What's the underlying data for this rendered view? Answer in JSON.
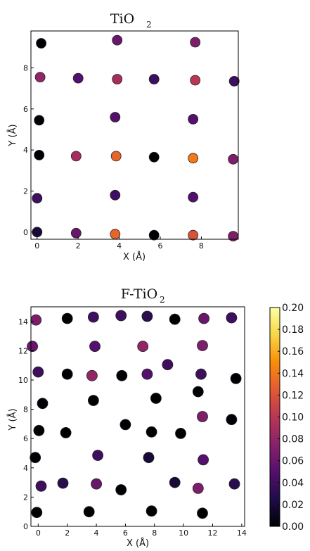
{
  "colorbar": {
    "min": 0.0,
    "max": 0.2,
    "ticks": [
      "0.20",
      "0.18",
      "0.16",
      "0.14",
      "0.12",
      "0.10",
      "0.08",
      "0.06",
      "0.04",
      "0.02",
      "0.00"
    ],
    "colormap": "inferno",
    "stops": [
      "#000004",
      "#1f0c48",
      "#550f6d",
      "#88226a",
      "#ba3655",
      "#e35933",
      "#f98e09",
      "#f6d746",
      "#fcffa4"
    ]
  },
  "chart_data": [
    {
      "type": "scatter",
      "title": "TiO",
      "title_sub": "2",
      "xlabel": "X (Å)",
      "ylabel": "Y (Å)",
      "xlim": [
        -0.3,
        9.8
      ],
      "ylim": [
        -0.35,
        9.8
      ],
      "xticks": [
        "0",
        "2",
        "4",
        "6",
        "8"
      ],
      "yticks": [
        "0",
        "2",
        "4",
        "6",
        "8"
      ],
      "grid": false,
      "points": [
        {
          "x": 0.2,
          "y": 9.2,
          "v": 0.0
        },
        {
          "x": 3.9,
          "y": 9.35,
          "v": 0.06
        },
        {
          "x": 7.7,
          "y": 9.25,
          "v": 0.07
        },
        {
          "x": 0.15,
          "y": 7.55,
          "v": 0.08
        },
        {
          "x": 2.0,
          "y": 7.5,
          "v": 0.05
        },
        {
          "x": 3.9,
          "y": 7.45,
          "v": 0.09
        },
        {
          "x": 5.7,
          "y": 7.45,
          "v": 0.04
        },
        {
          "x": 7.7,
          "y": 7.4,
          "v": 0.1
        },
        {
          "x": 9.6,
          "y": 7.35,
          "v": 0.04
        },
        {
          "x": 0.1,
          "y": 5.45,
          "v": 0.0
        },
        {
          "x": 3.8,
          "y": 5.6,
          "v": 0.05
        },
        {
          "x": 7.6,
          "y": 5.5,
          "v": 0.05
        },
        {
          "x": 0.1,
          "y": 3.75,
          "v": 0.0
        },
        {
          "x": 1.9,
          "y": 3.7,
          "v": 0.09
        },
        {
          "x": 3.85,
          "y": 3.7,
          "v": 0.13
        },
        {
          "x": 5.7,
          "y": 3.65,
          "v": 0.0
        },
        {
          "x": 7.6,
          "y": 3.6,
          "v": 0.14
        },
        {
          "x": 9.55,
          "y": 3.55,
          "v": 0.07
        },
        {
          "x": 0.0,
          "y": 1.65,
          "v": 0.04
        },
        {
          "x": 3.8,
          "y": 1.8,
          "v": 0.04
        },
        {
          "x": 7.6,
          "y": 1.7,
          "v": 0.05
        },
        {
          "x": 0.0,
          "y": 0.0,
          "v": 0.02
        },
        {
          "x": 1.9,
          "y": -0.05,
          "v": 0.06
        },
        {
          "x": 3.8,
          "y": -0.1,
          "v": 0.13
        },
        {
          "x": 5.7,
          "y": -0.15,
          "v": 0.0
        },
        {
          "x": 7.6,
          "y": -0.15,
          "v": 0.12
        },
        {
          "x": 9.55,
          "y": -0.2,
          "v": 0.07
        }
      ]
    },
    {
      "type": "scatter",
      "title": "F-TiO",
      "title_sub": "2",
      "xlabel": "X (Å)",
      "ylabel": "Y (Å)",
      "xlim": [
        -0.5,
        14.2
      ],
      "ylim": [
        0,
        15
      ],
      "xticks": [
        "0",
        "2",
        "4",
        "6",
        "8",
        "10",
        "12",
        "14"
      ],
      "yticks": [
        "0",
        "2",
        "4",
        "6",
        "8",
        "10",
        "12",
        "14"
      ],
      "grid": false,
      "points": [
        {
          "x": -0.15,
          "y": 14.1,
          "v": 0.07
        },
        {
          "x": 2.0,
          "y": 14.2,
          "v": 0.0
        },
        {
          "x": 3.8,
          "y": 14.3,
          "v": 0.04
        },
        {
          "x": 5.7,
          "y": 14.4,
          "v": 0.04
        },
        {
          "x": 7.5,
          "y": 14.35,
          "v": 0.03
        },
        {
          "x": 9.4,
          "y": 14.15,
          "v": 0.0
        },
        {
          "x": 11.4,
          "y": 14.2,
          "v": 0.06
        },
        {
          "x": 13.3,
          "y": 14.25,
          "v": 0.04
        },
        {
          "x": -0.4,
          "y": 12.3,
          "v": 0.06
        },
        {
          "x": 3.9,
          "y": 12.3,
          "v": 0.05
        },
        {
          "x": 7.2,
          "y": 12.3,
          "v": 0.08
        },
        {
          "x": 11.3,
          "y": 12.35,
          "v": 0.07
        },
        {
          "x": 0.0,
          "y": 10.55,
          "v": 0.04
        },
        {
          "x": 2.0,
          "y": 10.4,
          "v": 0.0
        },
        {
          "x": 3.7,
          "y": 10.3,
          "v": 0.08
        },
        {
          "x": 5.75,
          "y": 10.3,
          "v": 0.0
        },
        {
          "x": 7.5,
          "y": 10.4,
          "v": 0.05
        },
        {
          "x": 8.9,
          "y": 11.05,
          "v": 0.04
        },
        {
          "x": 11.2,
          "y": 10.4,
          "v": 0.04
        },
        {
          "x": 13.6,
          "y": 10.1,
          "v": 0.0
        },
        {
          "x": 0.3,
          "y": 8.4,
          "v": 0.0
        },
        {
          "x": 3.8,
          "y": 8.6,
          "v": 0.0
        },
        {
          "x": 8.1,
          "y": 8.75,
          "v": 0.0
        },
        {
          "x": 11.0,
          "y": 9.2,
          "v": 0.0
        },
        {
          "x": 0.05,
          "y": 6.55,
          "v": 0.0
        },
        {
          "x": 1.9,
          "y": 6.4,
          "v": 0.0
        },
        {
          "x": 6.0,
          "y": 6.95,
          "v": 0.0
        },
        {
          "x": 7.8,
          "y": 6.45,
          "v": 0.0
        },
        {
          "x": 9.8,
          "y": 6.35,
          "v": 0.0
        },
        {
          "x": 11.3,
          "y": 7.5,
          "v": 0.07
        },
        {
          "x": 13.3,
          "y": 7.3,
          "v": 0.0
        },
        {
          "x": -0.2,
          "y": 4.7,
          "v": 0.0
        },
        {
          "x": 4.1,
          "y": 4.85,
          "v": 0.04
        },
        {
          "x": 7.6,
          "y": 4.7,
          "v": 0.02
        },
        {
          "x": 11.35,
          "y": 4.55,
          "v": 0.05
        },
        {
          "x": 0.2,
          "y": 2.75,
          "v": 0.04
        },
        {
          "x": 1.7,
          "y": 2.95,
          "v": 0.03
        },
        {
          "x": 4.0,
          "y": 2.9,
          "v": 0.06
        },
        {
          "x": 5.7,
          "y": 2.5,
          "v": 0.0
        },
        {
          "x": 9.4,
          "y": 3.0,
          "v": 0.02
        },
        {
          "x": 11.0,
          "y": 2.6,
          "v": 0.07
        },
        {
          "x": 13.5,
          "y": 2.9,
          "v": 0.03
        },
        {
          "x": -0.1,
          "y": 0.95,
          "v": 0.0
        },
        {
          "x": 3.5,
          "y": 1.0,
          "v": 0.0
        },
        {
          "x": 7.8,
          "y": 1.05,
          "v": 0.0
        },
        {
          "x": 11.3,
          "y": 0.9,
          "v": 0.0
        }
      ]
    }
  ]
}
